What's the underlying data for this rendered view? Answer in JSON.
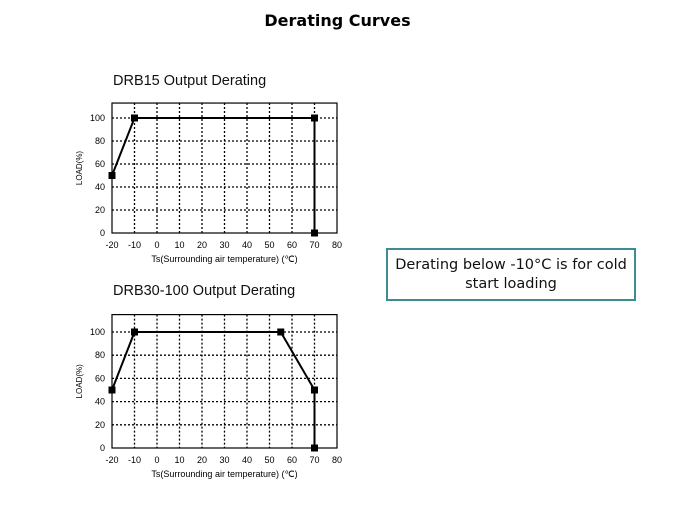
{
  "slide": {
    "title": "Derating Curves",
    "note": "Derating below -10°C is for cold start loading",
    "note_border_color": "#3d8c95"
  },
  "chart_data": [
    {
      "type": "line",
      "title": "DRB15  Output Derating",
      "xlabel": "Ts(Surrounding air temperature) (℃)",
      "ylabel": "LOAD(%)",
      "xlim": [
        -20,
        80
      ],
      "ylim": [
        0,
        113
      ],
      "xticks": [
        -20,
        -10,
        0,
        10,
        20,
        30,
        40,
        50,
        60,
        70,
        80
      ],
      "yticks": [
        0,
        20,
        40,
        60,
        80,
        100
      ],
      "grid": true,
      "x": [
        -20,
        -10,
        70,
        70
      ],
      "y": [
        50,
        100,
        100,
        0
      ],
      "markers": "square"
    },
    {
      "type": "line",
      "title": "DRB30-100  Output Derating",
      "xlabel": "Ts(Surrounding air temperature) (℃)",
      "ylabel": "LOAD(%)",
      "xlim": [
        -20,
        80
      ],
      "ylim": [
        0,
        115
      ],
      "xticks": [
        -20,
        -10,
        0,
        10,
        20,
        30,
        40,
        50,
        60,
        70,
        80
      ],
      "yticks": [
        0,
        20,
        40,
        60,
        80,
        100
      ],
      "grid": true,
      "x": [
        -20,
        -10,
        55,
        70,
        70
      ],
      "y": [
        50,
        100,
        100,
        50,
        0
      ],
      "markers": "square"
    }
  ]
}
